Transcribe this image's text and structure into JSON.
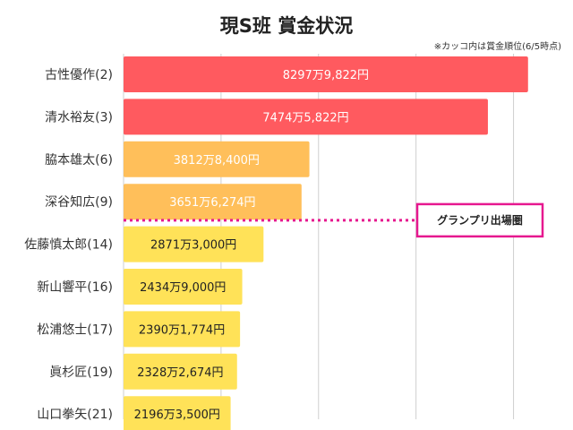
{
  "chart_data": {
    "type": "bar",
    "orientation": "horizontal",
    "title": "現S班 賞金状況",
    "note": "※カッコ内は賞金順位(6/5時点)",
    "categories": [
      "古性優作(2)",
      "清水裕友(3)",
      "脇本雄太(6)",
      "深谷知広(9)",
      "佐藤慎太郎(14)",
      "新山響平(16)",
      "松浦悠士(17)",
      "眞杉匠(19)",
      "山口拳矢(21)"
    ],
    "values": [
      82979822,
      74745822,
      38128400,
      36516274,
      28713000,
      24349000,
      23901774,
      23282674,
      21963500
    ],
    "value_labels": [
      "8297万9,822円",
      "7474万5,822円",
      "3812万8,400円",
      "3651万6,274円",
      "2871万3,000円",
      "2434万9,000円",
      "2390万1,774円",
      "2328万2,674円",
      "2196万3,500円"
    ],
    "xlim": [
      0,
      90000000
    ],
    "grid": true,
    "legend": "none",
    "colors": [
      "#ff5a5f",
      "#ff5a5f",
      "#ffbf5a",
      "#ffbf5a",
      "#ffe258",
      "#ffe258",
      "#ffe258",
      "#ffe258",
      "#ffe258"
    ],
    "label_colors": [
      "#ffffff",
      "#ffffff",
      "#ffffff",
      "#ffffff",
      "#222222",
      "#222222",
      "#222222",
      "#222222",
      "#222222"
    ],
    "annotation": {
      "text": "グランプリ出場圏",
      "after_index": 3,
      "color": "#e6188f"
    }
  }
}
